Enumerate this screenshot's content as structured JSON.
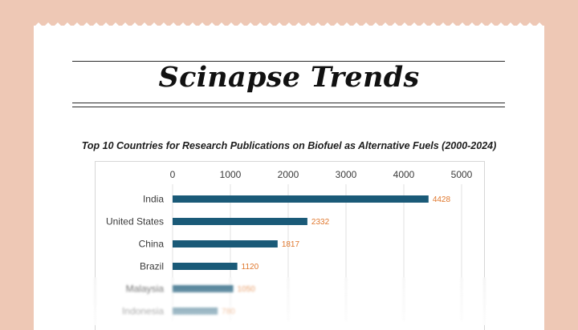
{
  "header": {
    "title": "Scinapse Trends"
  },
  "chart_data": {
    "type": "bar",
    "orientation": "horizontal",
    "title": "Top 10 Countries for Research Publications on Biofuel as Alternative Fuels (2000-2024)",
    "xlabel": "",
    "ylabel": "",
    "xlim": [
      0,
      5000
    ],
    "ticks": [
      "0",
      "1000",
      "2000",
      "3000",
      "4000",
      "5000"
    ],
    "categories": [
      "India",
      "United States",
      "China",
      "Brazil",
      "Malaysia",
      "Indonesia"
    ],
    "values": [
      4428,
      2332,
      1817,
      1120,
      1050,
      780
    ],
    "grid": true,
    "bar_color": "#1a5a78",
    "label_color": "#e0782e"
  }
}
